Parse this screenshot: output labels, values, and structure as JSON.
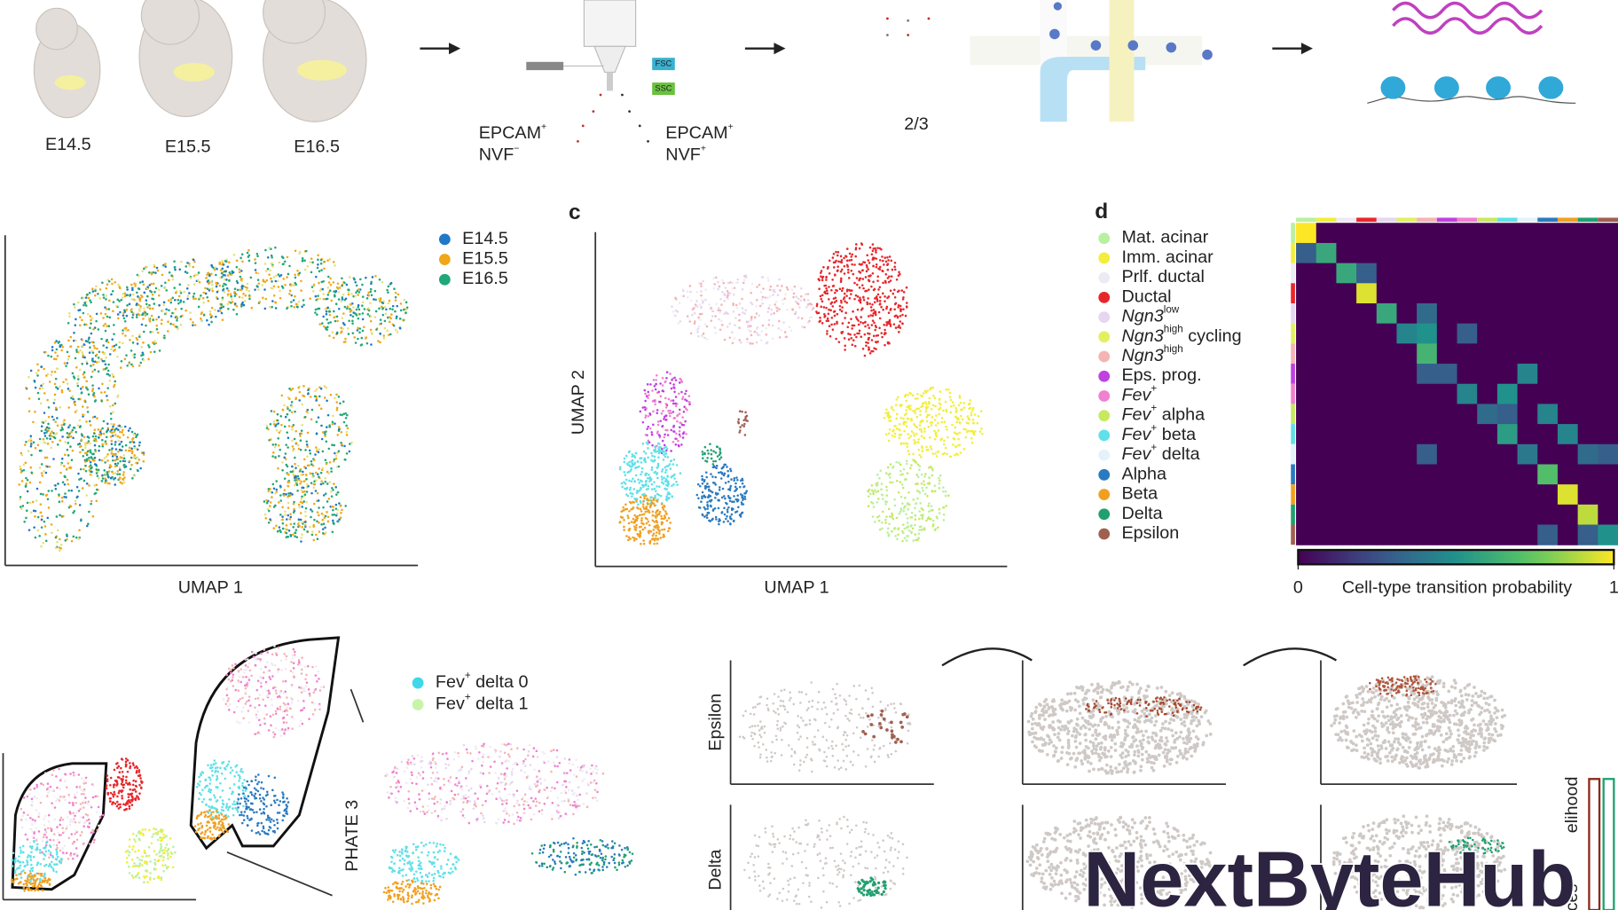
{
  "header": {
    "stages": [
      "E14.5",
      "E15.5",
      "E16.5"
    ],
    "sort_gates": [
      {
        "main": "EPCAM",
        "sup": "+",
        "line2": "NVF",
        "sup2": "−"
      },
      {
        "main": "EPCAM",
        "sup": "+",
        "line2": "NVF",
        "sup2": "+"
      }
    ],
    "detectors": [
      "FSC",
      "SSC"
    ],
    "ratio": "2/3"
  },
  "panel_b": {
    "legend": [
      {
        "label": "E14.5",
        "color": "#1f78c8"
      },
      {
        "label": "E15.5",
        "color": "#f0a818"
      },
      {
        "label": "E16.5",
        "color": "#1fa878"
      }
    ],
    "x_label": "UMAP 1"
  },
  "panel_c": {
    "label": "c",
    "x_label": "UMAP 1",
    "y_label": "UMAP 2"
  },
  "panel_d": {
    "label": "d",
    "legend": [
      {
        "main": "Mat. acinar",
        "color": "#b8f0a0"
      },
      {
        "main": "Imm. acinar",
        "color": "#f2ee3a"
      },
      {
        "main": "Prlf. ductal",
        "color": "#eeeaf4"
      },
      {
        "main": "Ductal",
        "color": "#e8262a"
      },
      {
        "main": "Ngn3",
        "sup": "low",
        "italic": true,
        "color": "#e6d6f0"
      },
      {
        "main": "Ngn3",
        "sup": "high",
        "rest": " cycling",
        "italic": true,
        "color": "#e2f060"
      },
      {
        "main": "Ngn3",
        "sup": "high",
        "italic": true,
        "color": "#f4b4b4"
      },
      {
        "main": "Eps. prog.",
        "color": "#c040e0"
      },
      {
        "main": "Fev",
        "sup": "+",
        "italic": true,
        "color": "#f080d0"
      },
      {
        "main": "Fev",
        "sup": "+",
        "rest": " alpha",
        "italic": true,
        "color": "#c8e860"
      },
      {
        "main": "Fev",
        "sup": "+",
        "rest": " beta",
        "italic": true,
        "color": "#60e0e8"
      },
      {
        "main": "Fev",
        "sup": "+",
        "rest": " delta",
        "italic": true,
        "color": "#e4f2fa"
      },
      {
        "main": "Alpha",
        "color": "#2a7ac0"
      },
      {
        "main": "Beta",
        "color": "#f0a020"
      },
      {
        "main": "Delta",
        "color": "#20a070"
      },
      {
        "main": "Epsilon",
        "color": "#a06050"
      }
    ],
    "heatmap": {
      "values": [
        [
          1,
          0,
          0,
          0,
          0,
          0,
          0,
          0,
          0,
          0,
          0,
          0,
          0,
          0,
          0,
          0
        ],
        [
          0.3,
          0.6,
          0,
          0,
          0,
          0,
          0,
          0,
          0,
          0,
          0,
          0,
          0,
          0,
          0,
          0
        ],
        [
          0,
          0,
          0.6,
          0.3,
          0,
          0,
          0,
          0,
          0,
          0,
          0,
          0,
          0,
          0,
          0,
          0
        ],
        [
          0,
          0,
          0,
          0.95,
          0,
          0,
          0,
          0,
          0,
          0,
          0,
          0,
          0,
          0,
          0,
          0
        ],
        [
          0,
          0,
          0,
          0,
          0.6,
          0,
          0.35,
          0,
          0,
          0,
          0,
          0,
          0,
          0,
          0,
          0
        ],
        [
          0,
          0,
          0,
          0,
          0,
          0.45,
          0.5,
          0,
          0.3,
          0,
          0,
          0,
          0,
          0,
          0,
          0
        ],
        [
          0,
          0,
          0,
          0,
          0,
          0,
          0.65,
          0,
          0,
          0,
          0,
          0,
          0,
          0,
          0,
          0
        ],
        [
          0,
          0,
          0,
          0,
          0,
          0,
          0.3,
          0.3,
          0,
          0,
          0,
          0.45,
          0,
          0,
          0,
          0
        ],
        [
          0,
          0,
          0,
          0,
          0,
          0,
          0,
          0,
          0.45,
          0,
          0.5,
          0,
          0,
          0,
          0,
          0
        ],
        [
          0,
          0,
          0,
          0,
          0,
          0,
          0,
          0,
          0,
          0.35,
          0.3,
          0,
          0.45,
          0,
          0,
          0
        ],
        [
          0,
          0,
          0,
          0,
          0,
          0,
          0,
          0,
          0,
          0,
          0.55,
          0,
          0,
          0.45,
          0,
          0
        ],
        [
          0,
          0,
          0,
          0,
          0,
          0,
          0.3,
          0,
          0,
          0,
          0,
          0.4,
          0,
          0,
          0.35,
          0.3
        ],
        [
          0,
          0,
          0,
          0,
          0,
          0,
          0,
          0,
          0,
          0,
          0,
          0,
          0.7,
          0,
          0,
          0
        ],
        [
          0,
          0,
          0,
          0,
          0,
          0,
          0,
          0,
          0,
          0,
          0,
          0,
          0,
          0.95,
          0,
          0
        ],
        [
          0,
          0,
          0,
          0,
          0,
          0,
          0,
          0,
          0,
          0,
          0,
          0,
          0,
          0,
          0.9,
          0
        ],
        [
          0,
          0,
          0,
          0,
          0,
          0,
          0,
          0,
          0,
          0,
          0,
          0,
          0.3,
          0,
          0.3,
          0.5
        ]
      ],
      "colorbar": {
        "ticks": [
          0,
          1
        ],
        "label": "Cell-type transition probability"
      }
    }
  },
  "panel_bottom": {
    "y_label": "PHATE 3",
    "legend": [
      {
        "main": "Fev",
        "sup": "+",
        "rest": " delta 0",
        "color": "#40d8e8"
      },
      {
        "main": "Fev",
        "sup": "+",
        "rest": " delta 1",
        "color": "#c8f4a8"
      }
    ],
    "row_labels": [
      "Epsilon",
      "Delta"
    ],
    "side_label": "elihood",
    "side_label2": "ces"
  },
  "watermark": "NextByteHub"
}
